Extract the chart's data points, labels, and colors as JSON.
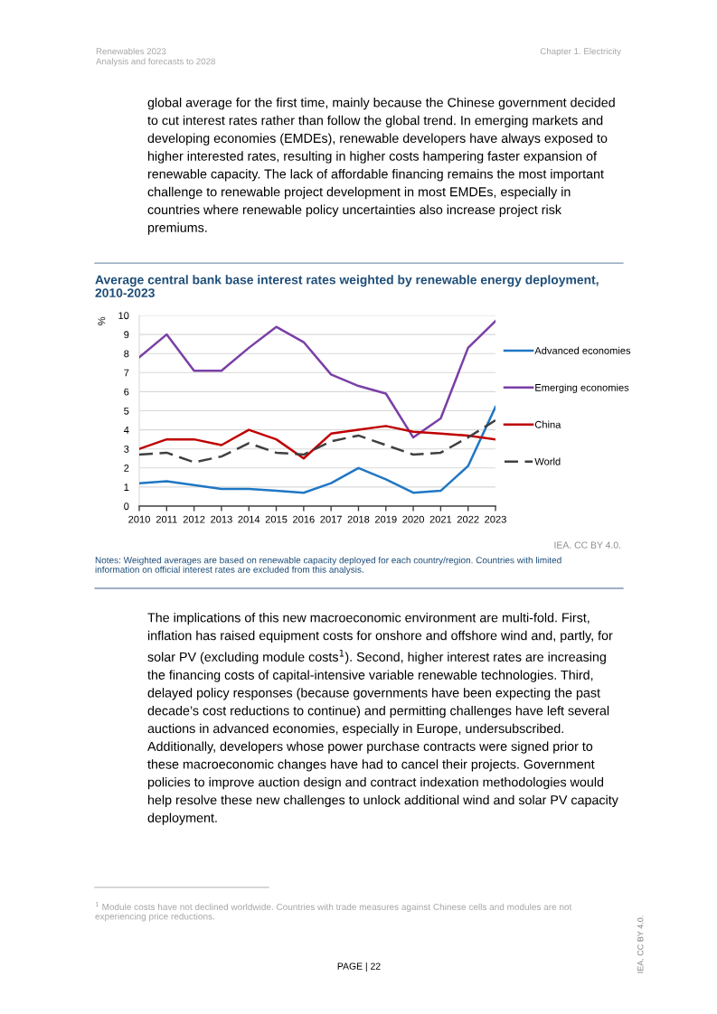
{
  "chart_data": {
    "type": "line",
    "title": "Average central bank base interest rates weighted by renewable energy deployment,\n2010-2023",
    "ylabel": "%",
    "x": [
      2010,
      2011,
      2012,
      2013,
      2014,
      2015,
      2016,
      2017,
      2018,
      2019,
      2020,
      2021,
      2022,
      2023
    ],
    "xlim": [
      2010,
      2023
    ],
    "xticks": [
      2010,
      2011,
      2012,
      2013,
      2014,
      2015,
      2016,
      2017,
      2018,
      2019,
      2020,
      2021,
      2022,
      2023
    ],
    "ylim": [
      0,
      10
    ],
    "yticks": [
      0,
      1,
      2,
      3,
      4,
      5,
      6,
      7,
      8,
      9,
      10
    ],
    "grid": "y",
    "legend": "right",
    "marker": "none",
    "series": [
      {
        "name": "Advanced economies",
        "color": "#1f77c4",
        "line_style": "solid",
        "values": [
          1.2,
          1.3,
          1.1,
          0.9,
          0.9,
          0.8,
          0.7,
          1.2,
          2.0,
          1.4,
          0.7,
          0.8,
          2.1,
          5.2
        ]
      },
      {
        "name": "Emerging economies",
        "color": "#7a3fa6",
        "line_style": "solid",
        "values": [
          7.8,
          9.0,
          7.1,
          7.1,
          8.3,
          9.4,
          8.6,
          6.9,
          6.3,
          5.9,
          3.6,
          4.6,
          8.3,
          9.7
        ]
      },
      {
        "name": "China",
        "color": "#c00000",
        "line_style": "solid",
        "values": [
          3.0,
          3.5,
          3.5,
          3.2,
          4.0,
          3.5,
          2.5,
          3.8,
          4.0,
          4.2,
          3.9,
          3.8,
          3.7,
          3.5
        ]
      },
      {
        "name": "World",
        "color": "#404040",
        "line_style": "dashed",
        "values": [
          2.7,
          2.8,
          2.3,
          2.6,
          3.3,
          2.8,
          2.7,
          3.4,
          3.7,
          3.2,
          2.7,
          2.8,
          3.6,
          4.5
        ]
      }
    ],
    "annotations": [
      "Renewables 2023\nAnalysis and forecasts to 2028",
      "Chapter 1. Electricity",
      "global average for the first time, mainly because the Chinese government decided\nto cut interest rates rather than follow the global trend. In emerging markets and\ndeveloping economies (EMDEs), renewable developers have always exposed to\nhigher interested rates, resulting in higher costs hampering faster expansion of\nrenewable capacity. The lack of affordable financing remains the most important\nchallenge to renewable project development in most EMDEs, especially in\ncountries where renewable policy uncertainties also increase project risk\npremiums.",
      "IEA. CC BY 4.0.",
      "Notes: Weighted averages are based on renewable capacity deployed for each country/region. Countries with limited\ninformation on official interest rates are excluded from this analysis.",
      "The implications of this new macroeconomic environment are multi-fold. First,\ninflation has raised equipment costs for onshore and offshore wind and, partly, for\nsolar PV (excluding module costs$^{1}$). Second, higher interest rates are increasing\nthe financing costs of capital-intensive variable renewable technologies. Third,\ndelayed policy responses (because governments have been expecting the past\ndecade’s cost reductions to continue) and permitting challenges have left several\nauctions in advanced economies, especially in Europe, undersubscribed.\nAdditionally, developers whose power purchase contracts were signed prior to\nthese macroeconomic changes have had to cancel their projects. Government\npolicies to improve auction design and contract indexation methodologies would\nhelp resolve these new challenges to unlock additional wind and solar PV capacity\ndeployment.",
      "$^{1}$ Module costs have not declined worldwide. Countries with trade measures against Chinese cells and modules are not\nexperiencing price reductions.",
      "PAGE | 22",
      "IEA. CC BY 4.0."
    ]
  }
}
